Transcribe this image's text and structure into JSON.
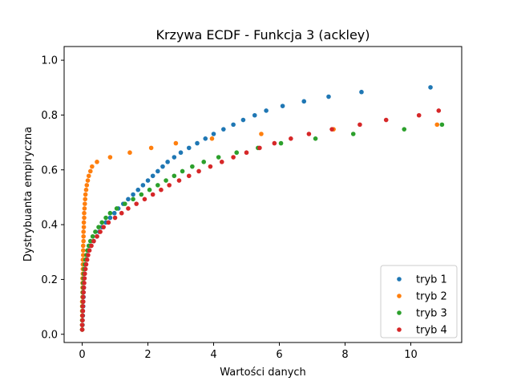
{
  "chart_data": {
    "type": "scatter",
    "title": "Krzywa ECDF - Funkcja 3 (ackley)",
    "xlabel": "Wartości danych",
    "ylabel": "Dystrybuanta empiryczna",
    "xlim": [
      -0.55,
      11.55
    ],
    "ylim": [
      -0.03,
      1.05
    ],
    "xticks": [
      0,
      2,
      4,
      6,
      8,
      10
    ],
    "yticks": [
      0.0,
      0.2,
      0.4,
      0.6,
      0.8,
      1.0
    ],
    "xtick_labels": [
      "0",
      "2",
      "4",
      "6",
      "8",
      "10"
    ],
    "ytick_labels": [
      "0.0",
      "0.2",
      "0.4",
      "0.6",
      "0.8",
      "1.0"
    ],
    "grid": false,
    "legend_position": "lower-right",
    "series": [
      {
        "name": "tryb 1",
        "color": "#1f77b4",
        "x": [
          0.0,
          0.01,
          0.01,
          0.02,
          0.02,
          0.03,
          0.03,
          0.04,
          0.04,
          0.05,
          0.05,
          0.06,
          0.07,
          0.08,
          0.1,
          0.12,
          0.15,
          0.2,
          0.27,
          0.35,
          0.45,
          0.52,
          0.6,
          0.72,
          0.85,
          0.98,
          1.1,
          1.25,
          1.4,
          1.55,
          1.7,
          1.85,
          2.0,
          2.15,
          2.3,
          2.45,
          2.6,
          2.8,
          3.0,
          3.25,
          3.5,
          3.75,
          4.0,
          4.3,
          4.6,
          4.9,
          5.25,
          5.6,
          6.1,
          6.75,
          7.5,
          8.5,
          10.6
        ],
        "y": [
          0.017,
          0.034,
          0.051,
          0.068,
          0.085,
          0.102,
          0.119,
          0.136,
          0.153,
          0.17,
          0.187,
          0.204,
          0.221,
          0.238,
          0.255,
          0.272,
          0.289,
          0.306,
          0.323,
          0.34,
          0.357,
          0.374,
          0.391,
          0.408,
          0.425,
          0.442,
          0.459,
          0.476,
          0.493,
          0.51,
          0.527,
          0.544,
          0.561,
          0.578,
          0.595,
          0.612,
          0.629,
          0.646,
          0.663,
          0.68,
          0.697,
          0.714,
          0.731,
          0.748,
          0.765,
          0.782,
          0.799,
          0.816,
          0.833,
          0.85,
          0.867,
          0.884,
          0.901
        ]
      },
      {
        "name": "tryb 2",
        "color": "#ff7f0e",
        "x": [
          0.0,
          0.0,
          0.0,
          0.0,
          0.0,
          0.0,
          0.0,
          0.01,
          0.01,
          0.01,
          0.01,
          0.01,
          0.02,
          0.02,
          0.02,
          0.02,
          0.03,
          0.03,
          0.03,
          0.04,
          0.04,
          0.04,
          0.05,
          0.05,
          0.06,
          0.06,
          0.07,
          0.08,
          0.09,
          0.1,
          0.12,
          0.14,
          0.17,
          0.2,
          0.25,
          0.3,
          0.45,
          0.85,
          1.45,
          2.1,
          2.85,
          3.95,
          5.45,
          7.65,
          10.8
        ],
        "y": [
          0.017,
          0.034,
          0.051,
          0.068,
          0.085,
          0.102,
          0.119,
          0.136,
          0.153,
          0.17,
          0.187,
          0.204,
          0.221,
          0.238,
          0.255,
          0.272,
          0.289,
          0.306,
          0.323,
          0.34,
          0.357,
          0.374,
          0.391,
          0.408,
          0.425,
          0.442,
          0.459,
          0.476,
          0.493,
          0.51,
          0.527,
          0.544,
          0.561,
          0.578,
          0.595,
          0.612,
          0.629,
          0.646,
          0.663,
          0.68,
          0.697,
          0.714,
          0.731,
          0.748,
          0.765
        ]
      },
      {
        "name": "tryb 3",
        "color": "#2ca02c",
        "x": [
          0.0,
          0.0,
          0.0,
          0.01,
          0.01,
          0.01,
          0.02,
          0.02,
          0.02,
          0.03,
          0.03,
          0.04,
          0.05,
          0.06,
          0.08,
          0.1,
          0.13,
          0.16,
          0.2,
          0.25,
          0.32,
          0.4,
          0.5,
          0.6,
          0.72,
          0.85,
          1.05,
          1.3,
          1.55,
          1.8,
          2.05,
          2.3,
          2.55,
          2.8,
          3.05,
          3.35,
          3.7,
          4.15,
          4.7,
          5.35,
          6.05,
          7.1,
          8.25,
          9.8,
          10.95
        ],
        "y": [
          0.017,
          0.034,
          0.051,
          0.068,
          0.085,
          0.102,
          0.119,
          0.136,
          0.153,
          0.17,
          0.187,
          0.204,
          0.221,
          0.238,
          0.255,
          0.272,
          0.289,
          0.306,
          0.323,
          0.34,
          0.357,
          0.374,
          0.391,
          0.408,
          0.425,
          0.442,
          0.459,
          0.476,
          0.493,
          0.51,
          0.527,
          0.544,
          0.561,
          0.578,
          0.595,
          0.612,
          0.629,
          0.646,
          0.663,
          0.68,
          0.697,
          0.714,
          0.731,
          0.748,
          0.765
        ]
      },
      {
        "name": "tryb 4",
        "color": "#d62728",
        "x": [
          0.0,
          0.0,
          0.01,
          0.01,
          0.02,
          0.02,
          0.03,
          0.03,
          0.04,
          0.05,
          0.06,
          0.07,
          0.08,
          0.1,
          0.12,
          0.15,
          0.18,
          0.22,
          0.28,
          0.35,
          0.45,
          0.55,
          0.65,
          0.8,
          1.0,
          1.2,
          1.4,
          1.65,
          1.9,
          2.15,
          2.4,
          2.65,
          2.95,
          3.25,
          3.55,
          3.9,
          4.25,
          4.6,
          5.0,
          5.4,
          5.85,
          6.35,
          6.9,
          7.6,
          8.45,
          9.25,
          10.25,
          10.85
        ],
        "y": [
          0.017,
          0.034,
          0.051,
          0.068,
          0.085,
          0.102,
          0.119,
          0.136,
          0.153,
          0.17,
          0.187,
          0.204,
          0.221,
          0.238,
          0.255,
          0.272,
          0.289,
          0.306,
          0.323,
          0.34,
          0.357,
          0.374,
          0.391,
          0.408,
          0.425,
          0.442,
          0.459,
          0.476,
          0.493,
          0.51,
          0.527,
          0.544,
          0.561,
          0.578,
          0.595,
          0.612,
          0.629,
          0.646,
          0.663,
          0.68,
          0.697,
          0.714,
          0.731,
          0.748,
          0.765,
          0.782,
          0.799,
          0.816
        ]
      }
    ]
  }
}
